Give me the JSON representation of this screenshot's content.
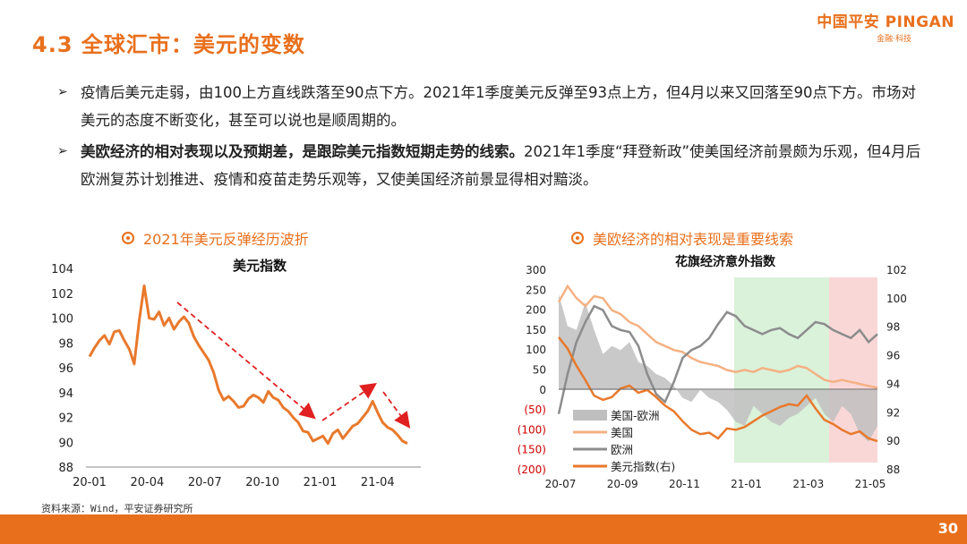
{
  "header": {
    "title": "4.3 全球汇市：美元的变数",
    "logo_main": "中国平安 PINGAN",
    "logo_sub": "金融·科技"
  },
  "bullets": [
    {
      "arrow": "➢",
      "text": "疫情后美元走弱，由100上方直线跌落至90点下方。2021年1季度美元反弹至93点上方，但4月以来又回落至90点下方。市场对美元的态度不断变化，甚至可以说也是顺周期的。",
      "bold": false
    },
    {
      "arrow": "➢",
      "text": "美欧经济的相对表现以及预期差，是跟踪美元指数短期走势的线索。",
      "rest": "2021年1季度“拜登新政”使美国经济前景颇为乐观，但4月后欧洲复苏计划推进、疫情和疫苗走势乐观等，又使美国经济前景显得相对黯淡。",
      "bold": true
    }
  ],
  "left_heading": "2021年美元反弹经历波折",
  "right_heading": "美欧经济的相对表现是重要线索",
  "source": "资料来源：Wind，平安证券研究所",
  "page_number": "30",
  "colors": {
    "accent": "#e8701d",
    "line_orange": "#e8792c",
    "arrow_red": "#e02020",
    "grey_area": "#bfbfbf",
    "light_orange": "#f4b183",
    "grey_line": "#8c8c8c"
  },
  "chart_data": [
    {
      "type": "line",
      "title": "美元指数",
      "x_ticks": [
        "20-01",
        "20-04",
        "20-07",
        "20-10",
        "21-01",
        "21-04"
      ],
      "ylim": [
        88,
        104
      ],
      "y_ticks": [
        "104",
        "102",
        "100",
        "98",
        "96",
        "94",
        "92",
        "90",
        "88"
      ],
      "series": [
        {
          "name": "",
          "values": [
            96.9,
            97.6,
            98.2,
            98.6,
            97.9,
            98.9,
            99.0,
            98.2,
            97.5,
            96.3,
            99.8,
            102.6,
            100.0,
            99.9,
            100.5,
            99.4,
            100.0,
            99.1,
            99.7,
            100.1,
            99.6,
            98.5,
            97.8,
            97.2,
            96.6,
            95.6,
            94.2,
            93.4,
            93.7,
            93.3,
            92.8,
            92.9,
            93.5,
            93.8,
            93.6,
            93.2,
            94.1,
            93.6,
            93.4,
            92.8,
            92.5,
            92.0,
            91.6,
            90.9,
            90.8,
            90.1,
            90.3,
            90.5,
            89.9,
            90.7,
            91.0,
            90.3,
            90.8,
            91.3,
            91.5,
            92.0,
            92.5,
            93.3,
            92.4,
            91.6,
            91.2,
            91.0,
            90.6,
            90.1,
            89.9
          ]
        }
      ],
      "annotations": [
        "red dashed arrow: downtrend 2020-05 to 2021-01",
        "red dashed arrow: rebound 2021-01 to 2021-04",
        "red dashed arrow: decline after 2021-04"
      ]
    },
    {
      "type": "line",
      "title": "花旗经济意外指数",
      "x_ticks": [
        "20-07",
        "20-09",
        "20-11",
        "21-01",
        "21-03",
        "21-05"
      ],
      "ylim_left": [
        -200,
        300
      ],
      "y_ticks_left": [
        "300",
        "250",
        "200",
        "150",
        "100",
        "50",
        "0",
        "(50)",
        "(100)",
        "(150)",
        "(200)"
      ],
      "ylim_right": [
        88,
        102
      ],
      "y_ticks_right": [
        "102",
        "100",
        "98",
        "96",
        "94",
        "92",
        "90",
        "88"
      ],
      "legend": [
        "美国-欧洲",
        "美国",
        "欧洲",
        "美元指数(右)"
      ],
      "legend_position": "bottom-left",
      "shaded_regions": [
        {
          "color": "#d6efd6",
          "label": ""
        },
        {
          "color": "#f9d3d3",
          "label": ""
        }
      ],
      "series": [
        {
          "name": "美国-欧洲",
          "kind": "area",
          "values": [
            240,
            160,
            150,
            220,
            150,
            90,
            110,
            100,
            120,
            70,
            60,
            40,
            30,
            10,
            -20,
            -30,
            0,
            -20,
            -30,
            -50,
            -80,
            -90,
            -40,
            -60,
            -80,
            -90,
            -70,
            -60,
            -40,
            -20,
            -60,
            -80,
            -40,
            -60,
            -110,
            -130,
            -90
          ]
        },
        {
          "name": "美国",
          "kind": "line",
          "values": [
            220,
            260,
            230,
            210,
            235,
            230,
            200,
            190,
            170,
            160,
            140,
            120,
            110,
            100,
            95,
            80,
            70,
            65,
            60,
            50,
            45,
            50,
            45,
            55,
            50,
            45,
            50,
            60,
            55,
            40,
            25,
            20,
            25,
            20,
            15,
            10,
            5
          ]
        },
        {
          "name": "欧洲",
          "kind": "line",
          "values": [
            -60,
            40,
            120,
            170,
            210,
            200,
            160,
            150,
            145,
            110,
            40,
            -10,
            -30,
            20,
            80,
            100,
            110,
            130,
            165,
            195,
            185,
            160,
            150,
            140,
            150,
            155,
            140,
            130,
            150,
            170,
            165,
            150,
            140,
            130,
            150,
            120,
            140
          ]
        },
        {
          "name": "美元指数(右)",
          "kind": "line",
          "axis": "right",
          "values": [
            97.3,
            96.5,
            95.3,
            94.3,
            93.2,
            92.9,
            93.1,
            93.7,
            93.9,
            93.4,
            93.6,
            93.1,
            92.5,
            92.1,
            91.4,
            90.8,
            90.5,
            90.6,
            90.2,
            90.9,
            90.8,
            91.0,
            91.4,
            91.8,
            92.1,
            92.4,
            92.6,
            92.5,
            93.2,
            92.3,
            91.5,
            91.2,
            90.8,
            90.5,
            90.7,
            90.2,
            90.0
          ]
        }
      ]
    }
  ]
}
